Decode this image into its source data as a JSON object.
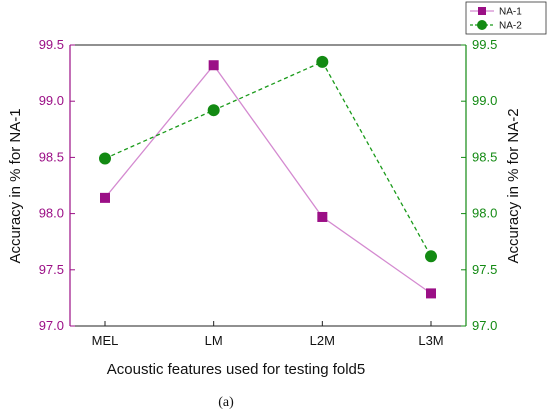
{
  "chart_data": {
    "type": "line",
    "categories": [
      "MEL",
      "LM",
      "L2M",
      "L3M"
    ],
    "series": [
      {
        "name": "NA-1",
        "axis": "left",
        "values": [
          98.14,
          99.32,
          97.97,
          97.29
        ],
        "color": "#9b0f86",
        "line_color": "#d48ad0",
        "marker": "square",
        "line_style": "solid"
      },
      {
        "name": "NA-2",
        "axis": "right",
        "values": [
          98.49,
          98.92,
          99.35,
          97.62
        ],
        "color": "#138a13",
        "line_color": "#1a9a1a",
        "marker": "circle",
        "line_style": "dashed"
      }
    ],
    "xlabel": "Acoustic features used for testing fold5",
    "ylabel_left": "Accuracy in % for NA-1",
    "ylabel_right": "Accuracy in % for NA-2",
    "ylim": [
      97.0,
      99.5
    ],
    "yticks": [
      97.0,
      97.5,
      98.0,
      98.5,
      99.0,
      99.5
    ],
    "ytick_labels": [
      "97.0",
      "97.5",
      "98.0",
      "98.5",
      "99.0",
      "99.5"
    ],
    "left_axis_color": "#9b0f86",
    "right_axis_color": "#138a13",
    "grid": false,
    "legend_position": "top-right"
  },
  "caption": "(a)"
}
